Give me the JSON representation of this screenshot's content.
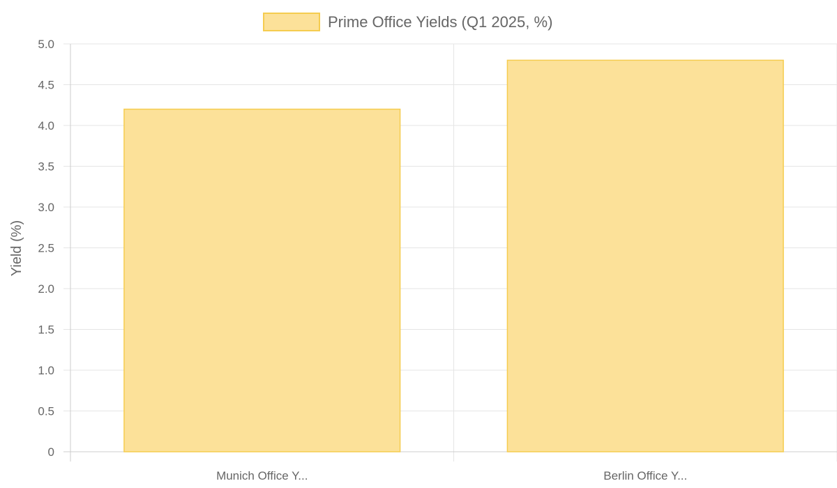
{
  "chart_data": {
    "type": "bar",
    "categories": [
      "Munich Office Y...",
      "Berlin Office Y..."
    ],
    "series": [
      {
        "name": "Prime Office Yields (Q1 2025, %)",
        "values": [
          4.2,
          4.8
        ]
      }
    ],
    "ylabel": "Yield (%)",
    "xlabel": "",
    "ylim": [
      0,
      5
    ],
    "yticks": [
      "0",
      "0.5",
      "1.0",
      "1.5",
      "2.0",
      "2.5",
      "3.0",
      "3.5",
      "4.0",
      "4.5",
      "5.0"
    ],
    "grid": true,
    "legend_position": "top-center",
    "colors": {
      "bar_fill": "#fce199",
      "bar_border": "#f5cc4f",
      "grid": "#e5e5e5",
      "axis": "#cccccc",
      "text": "#666666"
    }
  }
}
